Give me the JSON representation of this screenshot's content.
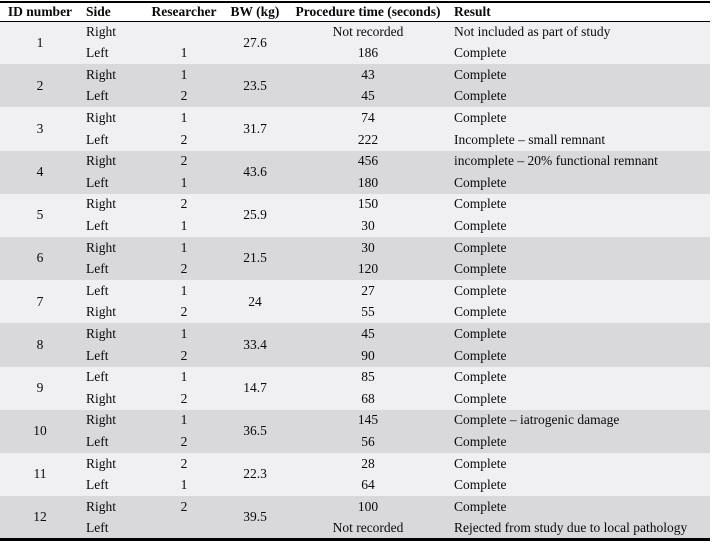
{
  "colors": {
    "row_light": "#f0eff1",
    "row_dark": "#d9d8da",
    "border": "#000000",
    "text": "#0a0a0a"
  },
  "table": {
    "columns": [
      "ID number",
      "Side",
      "Researcher",
      "BW (kg)",
      "Procedure time (seconds)",
      "Result"
    ],
    "groups": [
      {
        "id": "1",
        "bw": "27.6",
        "shade": "light",
        "rows": [
          {
            "side": "Right",
            "researcher": "",
            "time": "Not recorded",
            "result": "Not included as part of study"
          },
          {
            "side": "Left",
            "researcher": "1",
            "time": "186",
            "result": "Complete"
          }
        ]
      },
      {
        "id": "2",
        "bw": "23.5",
        "shade": "dark",
        "rows": [
          {
            "side": "Right",
            "researcher": "1",
            "time": "43",
            "result": "Complete"
          },
          {
            "side": "Left",
            "researcher": "2",
            "time": "45",
            "result": "Complete"
          }
        ]
      },
      {
        "id": "3",
        "bw": "31.7",
        "shade": "light",
        "rows": [
          {
            "side": "Right",
            "researcher": "1",
            "time": "74",
            "result": "Complete"
          },
          {
            "side": "Left",
            "researcher": "2",
            "time": "222",
            "result": "Incomplete – small remnant"
          }
        ]
      },
      {
        "id": "4",
        "bw": "43.6",
        "shade": "dark",
        "rows": [
          {
            "side": "Right",
            "researcher": "2",
            "time": "456",
            "result": "incomplete – 20% functional remnant"
          },
          {
            "side": "Left",
            "researcher": "1",
            "time": "180",
            "result": "Complete"
          }
        ]
      },
      {
        "id": "5",
        "bw": "25.9",
        "shade": "light",
        "rows": [
          {
            "side": "Right",
            "researcher": "2",
            "time": "150",
            "result": "Complete"
          },
          {
            "side": "Left",
            "researcher": "1",
            "time": "30",
            "result": "Complete"
          }
        ]
      },
      {
        "id": "6",
        "bw": "21.5",
        "shade": "dark",
        "rows": [
          {
            "side": "Right",
            "researcher": "1",
            "time": "30",
            "result": "Complete"
          },
          {
            "side": "Left",
            "researcher": "2",
            "time": "120",
            "result": "Complete"
          }
        ]
      },
      {
        "id": "7",
        "bw": "24",
        "shade": "light",
        "rows": [
          {
            "side": "Left",
            "researcher": "1",
            "time": "27",
            "result": "Complete"
          },
          {
            "side": "Right",
            "researcher": "2",
            "time": "55",
            "result": "Complete"
          }
        ]
      },
      {
        "id": "8",
        "bw": "33.4",
        "shade": "dark",
        "rows": [
          {
            "side": "Right",
            "researcher": "1",
            "time": "45",
            "result": "Complete"
          },
          {
            "side": "Left",
            "researcher": "2",
            "time": "90",
            "result": "Complete"
          }
        ]
      },
      {
        "id": "9",
        "bw": "14.7",
        "shade": "light",
        "rows": [
          {
            "side": "Left",
            "researcher": "1",
            "time": "85",
            "result": "Complete"
          },
          {
            "side": "Right",
            "researcher": "2",
            "time": "68",
            "result": "Complete"
          }
        ]
      },
      {
        "id": "10",
        "bw": "36.5",
        "shade": "dark",
        "rows": [
          {
            "side": "Right",
            "researcher": "1",
            "time": "145",
            "result": "Complete – iatrogenic damage"
          },
          {
            "side": "Left",
            "researcher": "2",
            "time": "56",
            "result": "Complete"
          }
        ]
      },
      {
        "id": "11",
        "bw": "22.3",
        "shade": "light",
        "rows": [
          {
            "side": "Right",
            "researcher": "2",
            "time": "28",
            "result": "Complete"
          },
          {
            "side": "Left",
            "researcher": "1",
            "time": "64",
            "result": "Complete"
          }
        ]
      },
      {
        "id": "12",
        "bw": "39.5",
        "shade": "dark",
        "rows": [
          {
            "side": "Right",
            "researcher": "2",
            "time": "100",
            "result": "Complete"
          },
          {
            "side": "Left",
            "researcher": "",
            "time": "Not recorded",
            "result": "Rejected from study due to local pathology"
          }
        ]
      }
    ]
  }
}
